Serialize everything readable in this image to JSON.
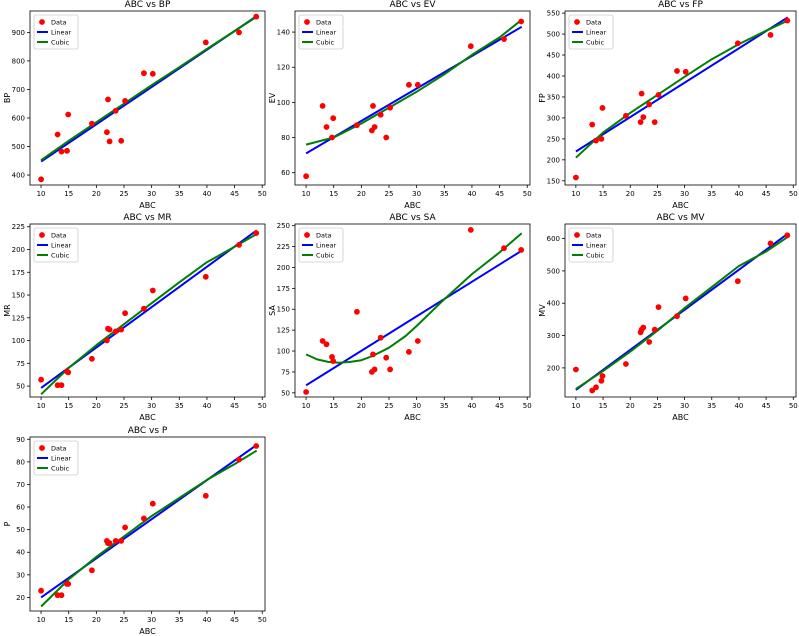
{
  "legend_labels": {
    "data": "Data",
    "linear": "Linear",
    "cubic": "Cubic"
  },
  "colors": {
    "data": "#ff0000",
    "linear": "#0000ff",
    "cubic": "#008000"
  },
  "chart_data": [
    {
      "type": "scatter",
      "title": "ABC vs BP",
      "xlabel": "ABC",
      "ylabel": "BP",
      "xlim": [
        8,
        50.5
      ],
      "ylim": [
        365,
        975
      ],
      "xticks": [
        10,
        15,
        20,
        25,
        30,
        35,
        40,
        45,
        50
      ],
      "yticks": [
        400,
        500,
        600,
        700,
        800,
        900
      ],
      "legend": "top-left",
      "grid": false,
      "points": {
        "x": [
          10,
          13,
          13.7,
          14.7,
          14.9,
          19.2,
          21.9,
          22.1,
          22.4,
          23.5,
          24.5,
          25.2,
          28.6,
          30.2,
          39.8,
          45.8,
          48.9
        ],
        "y": [
          385,
          542,
          482,
          485,
          612,
          580,
          550,
          665,
          518,
          625,
          520,
          660,
          757,
          755,
          865,
          900,
          955
        ]
      },
      "linear": {
        "x": [
          10,
          49
        ],
        "y": [
          447,
          957
        ]
      },
      "cubic": {
        "x": [
          10,
          15,
          20,
          25,
          30,
          35,
          40,
          45,
          49
        ],
        "y": [
          452,
          520,
          585,
          650,
          715,
          778,
          842,
          905,
          955
        ]
      }
    },
    {
      "type": "scatter",
      "title": "ABC vs EV",
      "xlabel": "ABC",
      "ylabel": "EV",
      "xlim": [
        8,
        50.5
      ],
      "ylim": [
        53,
        152
      ],
      "xticks": [
        10,
        15,
        20,
        25,
        30,
        35,
        40,
        45,
        50
      ],
      "yticks": [
        60,
        80,
        100,
        120,
        140
      ],
      "legend": "top-left",
      "grid": false,
      "points": {
        "x": [
          10,
          13,
          13.7,
          14.7,
          14.9,
          19.2,
          21.9,
          22.1,
          22.4,
          23.5,
          24.5,
          25.2,
          28.6,
          30.2,
          39.8,
          45.8,
          48.9
        ],
        "y": [
          58,
          98,
          86,
          80,
          91,
          87,
          84,
          98,
          86,
          93,
          80,
          97,
          110,
          110,
          132,
          136,
          146
        ]
      },
      "linear": {
        "x": [
          10,
          49
        ],
        "y": [
          71,
          143
        ]
      },
      "cubic": {
        "x": [
          10,
          15,
          20,
          25,
          30,
          35,
          40,
          45,
          49
        ],
        "y": [
          76,
          80,
          88,
          97,
          106,
          116,
          127,
          137,
          147
        ]
      }
    },
    {
      "type": "scatter",
      "title": "ABC vs FP",
      "xlabel": "ABC",
      "ylabel": "FP",
      "xlim": [
        8,
        50.5
      ],
      "ylim": [
        140,
        555
      ],
      "xticks": [
        10,
        15,
        20,
        25,
        30,
        35,
        40,
        45,
        50
      ],
      "yticks": [
        150,
        200,
        250,
        300,
        350,
        400,
        450,
        500,
        550
      ],
      "legend": "top-left",
      "grid": false,
      "points": {
        "x": [
          10,
          13,
          13.7,
          14.7,
          14.9,
          19.2,
          21.9,
          22.1,
          22.4,
          23.5,
          24.5,
          25.2,
          28.6,
          30.2,
          39.8,
          45.8,
          48.9
        ],
        "y": [
          158,
          284,
          246,
          250,
          324,
          305,
          290,
          358,
          302,
          332,
          290,
          355,
          412,
          410,
          478,
          498,
          532
        ]
      },
      "linear": {
        "x": [
          10,
          49
        ],
        "y": [
          220,
          540
        ]
      },
      "cubic": {
        "x": [
          10,
          15,
          20,
          25,
          30,
          35,
          40,
          45,
          49
        ],
        "y": [
          205,
          265,
          312,
          355,
          398,
          440,
          476,
          508,
          532
        ]
      }
    },
    {
      "type": "scatter",
      "title": "ABC vs MR",
      "xlabel": "ABC",
      "ylabel": "MR",
      "xlim": [
        8,
        50.5
      ],
      "ylim": [
        38,
        228
      ],
      "xticks": [
        10,
        15,
        20,
        25,
        30,
        35,
        40,
        45,
        50
      ],
      "yticks": [
        50,
        75,
        100,
        125,
        150,
        175,
        200,
        225
      ],
      "legend": "top-left",
      "grid": false,
      "points": {
        "x": [
          10,
          13,
          13.7,
          14.7,
          14.9,
          19.2,
          21.9,
          22.1,
          22.4,
          23.5,
          24.5,
          25.2,
          28.6,
          30.2,
          39.8,
          45.8,
          48.9
        ],
        "y": [
          57,
          51,
          51,
          66,
          65,
          80,
          100,
          113,
          112,
          110,
          112,
          130,
          135,
          155,
          170,
          205,
          218
        ]
      },
      "linear": {
        "x": [
          10,
          49
        ],
        "y": [
          48,
          221
        ]
      },
      "cubic": {
        "x": [
          10,
          15,
          20,
          25,
          30,
          35,
          40,
          45,
          49
        ],
        "y": [
          41,
          70,
          95,
          118,
          141,
          164,
          186,
          203,
          217
        ]
      }
    },
    {
      "type": "scatter",
      "title": "ABC vs SA",
      "xlabel": "ABC",
      "ylabel": "SA",
      "xlim": [
        8,
        50.5
      ],
      "ylim": [
        45,
        252
      ],
      "xticks": [
        10,
        15,
        20,
        25,
        30,
        35,
        40,
        45,
        50
      ],
      "yticks": [
        50,
        75,
        100,
        125,
        150,
        175,
        200,
        225,
        250
      ],
      "legend": "top-left",
      "grid": false,
      "points": {
        "x": [
          10,
          13,
          13.7,
          14.7,
          14.9,
          19.2,
          21.9,
          22.1,
          22.4,
          23.5,
          24.5,
          25.2,
          28.6,
          30.2,
          39.8,
          45.8,
          48.9
        ],
        "y": [
          51,
          112,
          108,
          93,
          88,
          147,
          75,
          96,
          78,
          116,
          92,
          78,
          99,
          112,
          245,
          223,
          221
        ]
      },
      "linear": {
        "x": [
          10,
          49
        ],
        "y": [
          59,
          220
        ]
      },
      "cubic": {
        "x": [
          10,
          12,
          14,
          16,
          18,
          20,
          22,
          25,
          28,
          30,
          35,
          40,
          45,
          49
        ],
        "y": [
          96,
          90,
          87,
          86,
          87,
          89,
          94,
          104,
          118,
          130,
          162,
          192,
          218,
          241
        ]
      }
    },
    {
      "type": "scatter",
      "title": "ABC vs MV",
      "xlabel": "ABC",
      "ylabel": "MV",
      "xlim": [
        8,
        50.5
      ],
      "ylim": [
        110,
        645
      ],
      "xticks": [
        10,
        15,
        20,
        25,
        30,
        35,
        40,
        45,
        50
      ],
      "yticks": [
        200,
        300,
        400,
        500,
        600
      ],
      "legend": "top-left",
      "grid": false,
      "points": {
        "x": [
          10,
          13,
          13.7,
          14.7,
          14.9,
          19.2,
          21.9,
          22.1,
          22.4,
          23.5,
          24.5,
          25.2,
          28.6,
          30.2,
          39.8,
          45.8,
          48.9
        ],
        "y": [
          195,
          130,
          140,
          160,
          175,
          212,
          310,
          318,
          325,
          280,
          318,
          388,
          360,
          415,
          468,
          585,
          610
        ]
      },
      "linear": {
        "x": [
          10,
          49
        ],
        "y": [
          132,
          615
        ]
      },
      "cubic": {
        "x": [
          10,
          15,
          20,
          25,
          30,
          35,
          40,
          45,
          49
        ],
        "y": [
          135,
          190,
          250,
          315,
          385,
          450,
          515,
          560,
          605
        ]
      }
    },
    {
      "type": "scatter",
      "title": "ABC vs P",
      "xlabel": "ABC",
      "ylabel": "P",
      "xlim": [
        8,
        50.5
      ],
      "ylim": [
        14,
        91
      ],
      "xticks": [
        10,
        15,
        20,
        25,
        30,
        35,
        40,
        45,
        50
      ],
      "yticks": [
        20,
        30,
        40,
        50,
        60,
        70,
        80,
        90
      ],
      "legend": "top-left",
      "grid": false,
      "points": {
        "x": [
          10,
          13,
          13.7,
          14.7,
          14.9,
          19.2,
          21.9,
          22.1,
          22.4,
          23.5,
          24.5,
          25.2,
          28.6,
          30.2,
          39.8,
          45.8,
          48.9
        ],
        "y": [
          23,
          21,
          21,
          26,
          26,
          32,
          45,
          44,
          44,
          45,
          45,
          51,
          55,
          61.5,
          65,
          81,
          87
        ]
      },
      "linear": {
        "x": [
          10,
          49
        ],
        "y": [
          20,
          87.5
        ]
      },
      "cubic": {
        "x": [
          10,
          15,
          20,
          25,
          30,
          35,
          40,
          45,
          49
        ],
        "y": [
          16,
          28,
          38,
          47,
          56,
          64,
          72,
          79,
          85
        ]
      }
    }
  ]
}
